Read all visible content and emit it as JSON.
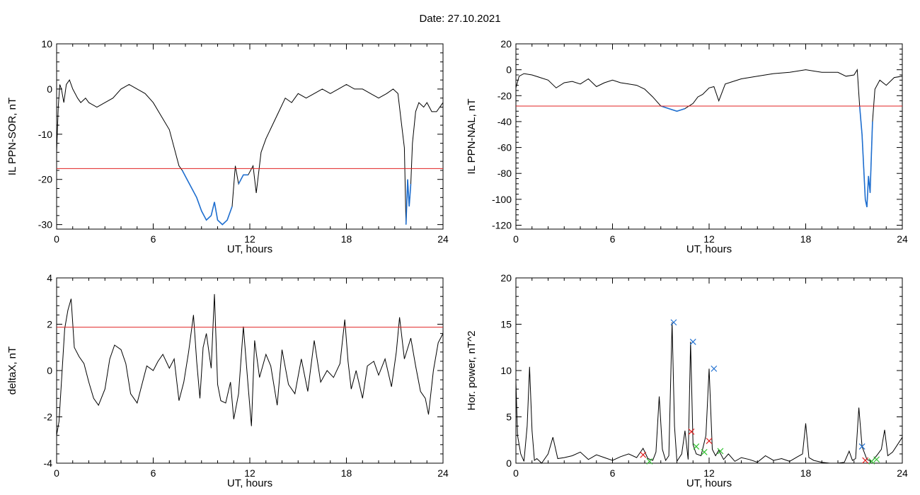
{
  "header": {
    "title": "Date:  27.10.2021"
  },
  "colors": {
    "line": "#000000",
    "highlight": "#1f6fd0",
    "threshold": "#e02020",
    "cross_blue": "#1f6fd0",
    "cross_red": "#e02020",
    "cross_green": "#30c030"
  },
  "chart_data": [
    {
      "id": "sor",
      "type": "line",
      "title": "",
      "xlabel": "UT, hours",
      "ylabel": "IL PPN-SOR, nT",
      "xlim": [
        0,
        24
      ],
      "ylim": [
        -31,
        10
      ],
      "xticks": [
        0,
        6,
        12,
        18,
        24
      ],
      "yticks": [
        -30,
        -20,
        -10,
        0,
        10
      ],
      "threshold": -17.6,
      "highlight_below_threshold": true,
      "x": [
        0,
        0.1,
        0.2,
        0.3,
        0.45,
        0.6,
        0.8,
        1.0,
        1.3,
        1.5,
        1.8,
        2.0,
        2.5,
        3.0,
        3.5,
        4.0,
        4.5,
        5.0,
        5.5,
        6.0,
        6.5,
        7.0,
        7.3,
        7.6,
        7.8,
        8.1,
        8.4,
        8.7,
        9.0,
        9.3,
        9.6,
        9.8,
        10.0,
        10.3,
        10.6,
        10.9,
        11.1,
        11.3,
        11.6,
        11.9,
        12.2,
        12.4,
        12.7,
        13.0,
        13.4,
        13.8,
        14.2,
        14.6,
        15.0,
        15.5,
        16.0,
        16.5,
        17.0,
        17.5,
        18.0,
        18.5,
        19.0,
        19.5,
        20.0,
        20.5,
        20.9,
        21.2,
        21.4,
        21.6,
        21.7,
        21.8,
        21.9,
        22.0,
        22.1,
        22.3,
        22.5,
        22.8,
        23.0,
        23.3,
        23.6,
        24.0
      ],
      "y": [
        -14,
        -4,
        1,
        0,
        -3,
        1,
        2,
        0,
        -2,
        -3,
        -2,
        -3,
        -4,
        -3,
        -2,
        0,
        1,
        0,
        -1,
        -3,
        -6,
        -9,
        -13,
        -17,
        -18,
        -20,
        -22,
        -24,
        -27,
        -29,
        -28,
        -25,
        -29,
        -30,
        -29,
        -26,
        -17,
        -21,
        -19,
        -19,
        -17,
        -23,
        -14,
        -11,
        -8,
        -5,
        -2,
        -3,
        -1,
        -2,
        -1,
        0,
        -1,
        0,
        1,
        0,
        0,
        -1,
        -2,
        -1,
        0,
        -1,
        -7,
        -13,
        -30,
        -20,
        -26,
        -21,
        -12,
        -5,
        -3,
        -4,
        -3,
        -5,
        -5,
        -3
      ]
    },
    {
      "id": "nal",
      "type": "line",
      "title": "",
      "xlabel": "UT, hours",
      "ylabel": "IL PPN-NAL, nT",
      "xlim": [
        0,
        24
      ],
      "ylim": [
        -123,
        20
      ],
      "xticks": [
        0,
        6,
        12,
        18,
        24
      ],
      "yticks": [
        -120,
        -100,
        -80,
        -60,
        -40,
        -20,
        0,
        20
      ],
      "threshold": -28,
      "highlight_below_threshold": true,
      "x": [
        0,
        0.2,
        0.5,
        1.0,
        1.5,
        2.0,
        2.5,
        3.0,
        3.5,
        4.0,
        4.5,
        5.0,
        5.5,
        6.0,
        6.5,
        7.0,
        7.5,
        8.0,
        8.5,
        9.0,
        9.5,
        10.0,
        10.5,
        11.0,
        11.3,
        11.6,
        12.0,
        12.3,
        12.6,
        13.0,
        13.5,
        14.0,
        15.0,
        16.0,
        17.0,
        18.0,
        19.0,
        20.0,
        20.5,
        21.0,
        21.2,
        21.35,
        21.5,
        21.6,
        21.7,
        21.8,
        21.9,
        22.0,
        22.15,
        22.3,
        22.6,
        23.0,
        23.5,
        24.0
      ],
      "y": [
        -14,
        -5,
        -3,
        -4,
        -6,
        -8,
        -14,
        -10,
        -9,
        -11,
        -7,
        -13,
        -10,
        -8,
        -10,
        -11,
        -12,
        -15,
        -21,
        -28,
        -30,
        -32,
        -30,
        -26,
        -21,
        -19,
        -14,
        -13,
        -24,
        -11,
        -9,
        -7,
        -5,
        -3,
        -2,
        0,
        -2,
        -2,
        -5,
        -4,
        0,
        -28,
        -50,
        -75,
        -100,
        -106,
        -82,
        -95,
        -40,
        -15,
        -8,
        -12,
        -6,
        -5
      ]
    },
    {
      "id": "deltax",
      "type": "line",
      "title": "",
      "xlabel": "UT, hours",
      "ylabel": "deltaX, nT",
      "xlim": [
        0,
        24
      ],
      "ylim": [
        -4,
        4
      ],
      "xticks": [
        0,
        6,
        12,
        18,
        24
      ],
      "yticks": [
        -4,
        -2,
        0,
        2,
        4
      ],
      "threshold": 1.87,
      "highlight_below_threshold": false,
      "x": [
        0,
        0.15,
        0.3,
        0.5,
        0.7,
        0.9,
        1.1,
        1.4,
        1.7,
        2.0,
        2.3,
        2.6,
        3.0,
        3.3,
        3.6,
        4.0,
        4.3,
        4.6,
        5.0,
        5.3,
        5.6,
        6.0,
        6.3,
        6.6,
        7.0,
        7.3,
        7.6,
        7.9,
        8.2,
        8.5,
        8.7,
        8.9,
        9.1,
        9.3,
        9.6,
        9.8,
        10.0,
        10.2,
        10.5,
        10.8,
        11.0,
        11.3,
        11.6,
        11.9,
        12.1,
        12.3,
        12.6,
        13.0,
        13.3,
        13.7,
        14.0,
        14.4,
        14.8,
        15.2,
        15.6,
        16.0,
        16.4,
        16.8,
        17.2,
        17.6,
        17.9,
        18.1,
        18.3,
        18.6,
        19.0,
        19.3,
        19.7,
        20.0,
        20.4,
        20.8,
        21.1,
        21.3,
        21.6,
        22.0,
        22.3,
        22.6,
        22.9,
        23.1,
        23.4,
        23.7,
        24.0
      ],
      "y": [
        -2.8,
        -2.2,
        -0.5,
        1.8,
        2.6,
        3.1,
        1.0,
        0.6,
        0.3,
        -0.5,
        -1.2,
        -1.5,
        -0.8,
        0.5,
        1.1,
        0.9,
        0.3,
        -1.0,
        -1.4,
        -0.6,
        0.2,
        0.0,
        0.4,
        0.7,
        0.1,
        0.5,
        -1.3,
        -0.5,
        0.8,
        2.4,
        0.4,
        -1.2,
        1.0,
        1.6,
        0.1,
        3.3,
        -0.6,
        -1.3,
        -1.4,
        -0.5,
        -2.1,
        -1.0,
        1.9,
        -0.7,
        -2.4,
        1.3,
        -0.3,
        0.7,
        0.2,
        -1.5,
        0.9,
        -0.6,
        -1.0,
        0.5,
        -0.9,
        1.3,
        -0.5,
        0.0,
        -0.3,
        0.3,
        2.2,
        0.4,
        -0.8,
        0.0,
        -1.2,
        0.2,
        0.4,
        -0.2,
        0.5,
        -0.7,
        0.8,
        2.3,
        0.5,
        1.4,
        0.2,
        -0.9,
        -1.2,
        -1.9,
        0.0,
        1.2,
        1.6
      ]
    },
    {
      "id": "power",
      "type": "line",
      "title": "",
      "xlabel": "UT, hours",
      "ylabel": "Hor. power, nT^2",
      "xlim": [
        0,
        24
      ],
      "ylim": [
        0,
        20
      ],
      "xticks": [
        0,
        6,
        12,
        18,
        24
      ],
      "yticks": [
        0,
        5,
        10,
        15,
        20
      ],
      "threshold": null,
      "highlight_below_threshold": false,
      "x": [
        0,
        0.1,
        0.3,
        0.5,
        0.7,
        0.85,
        1.0,
        1.15,
        1.3,
        1.6,
        2.0,
        2.3,
        2.6,
        3.0,
        3.5,
        4.0,
        4.5,
        5.0,
        5.5,
        6.0,
        6.5,
        7.0,
        7.5,
        7.9,
        8.2,
        8.5,
        8.7,
        8.9,
        9.1,
        9.3,
        9.5,
        9.7,
        9.85,
        10.0,
        10.3,
        10.5,
        10.7,
        10.85,
        11.0,
        11.2,
        11.5,
        11.8,
        12.0,
        12.2,
        12.4,
        12.6,
        12.9,
        13.2,
        13.6,
        14.0,
        14.5,
        15.0,
        15.5,
        16.0,
        16.5,
        17.0,
        17.5,
        17.8,
        18.0,
        18.2,
        18.5,
        19.0,
        19.5,
        20.0,
        20.4,
        20.7,
        20.9,
        21.1,
        21.3,
        21.5,
        21.8,
        22.1,
        22.4,
        22.7,
        22.9,
        23.1,
        23.4,
        23.7,
        24.0
      ],
      "y": [
        8.8,
        3.0,
        1.0,
        0.2,
        4.0,
        10.4,
        3.5,
        0.3,
        0.5,
        0.0,
        1.0,
        2.8,
        0.5,
        0.6,
        0.8,
        1.2,
        0.4,
        0.9,
        0.6,
        0.3,
        0.7,
        1.0,
        0.6,
        1.6,
        0.5,
        0.3,
        1.2,
        7.2,
        1.5,
        0.3,
        0.8,
        15.2,
        4.0,
        0.2,
        1.0,
        3.5,
        0.4,
        13.1,
        2.0,
        1.0,
        0.8,
        3.0,
        10.2,
        1.5,
        0.8,
        1.4,
        0.4,
        1.0,
        0.2,
        0.6,
        0.4,
        0.1,
        0.8,
        0.3,
        0.5,
        0.2,
        0.7,
        1.0,
        4.3,
        0.6,
        0.3,
        0.1,
        0.0,
        0.0,
        0.1,
        1.3,
        0.3,
        0.5,
        6.0,
        1.8,
        0.4,
        0.2,
        0.8,
        1.5,
        3.6,
        0.8,
        1.2,
        2.0,
        2.8
      ],
      "markers": [
        {
          "x": 9.8,
          "y": 15.2,
          "color": "blue"
        },
        {
          "x": 11.0,
          "y": 13.1,
          "color": "blue"
        },
        {
          "x": 12.3,
          "y": 10.2,
          "color": "blue"
        },
        {
          "x": 21.5,
          "y": 1.8,
          "color": "blue"
        },
        {
          "x": 7.9,
          "y": 0.9,
          "color": "red"
        },
        {
          "x": 10.9,
          "y": 3.4,
          "color": "red"
        },
        {
          "x": 12.0,
          "y": 2.4,
          "color": "red"
        },
        {
          "x": 21.7,
          "y": 0.3,
          "color": "red"
        },
        {
          "x": 8.3,
          "y": 0.2,
          "color": "green"
        },
        {
          "x": 11.2,
          "y": 1.8,
          "color": "green"
        },
        {
          "x": 11.7,
          "y": 1.2,
          "color": "green"
        },
        {
          "x": 12.7,
          "y": 1.3,
          "color": "green"
        },
        {
          "x": 22.1,
          "y": 0.2,
          "color": "green"
        },
        {
          "x": 22.4,
          "y": 0.4,
          "color": "green"
        }
      ]
    }
  ]
}
